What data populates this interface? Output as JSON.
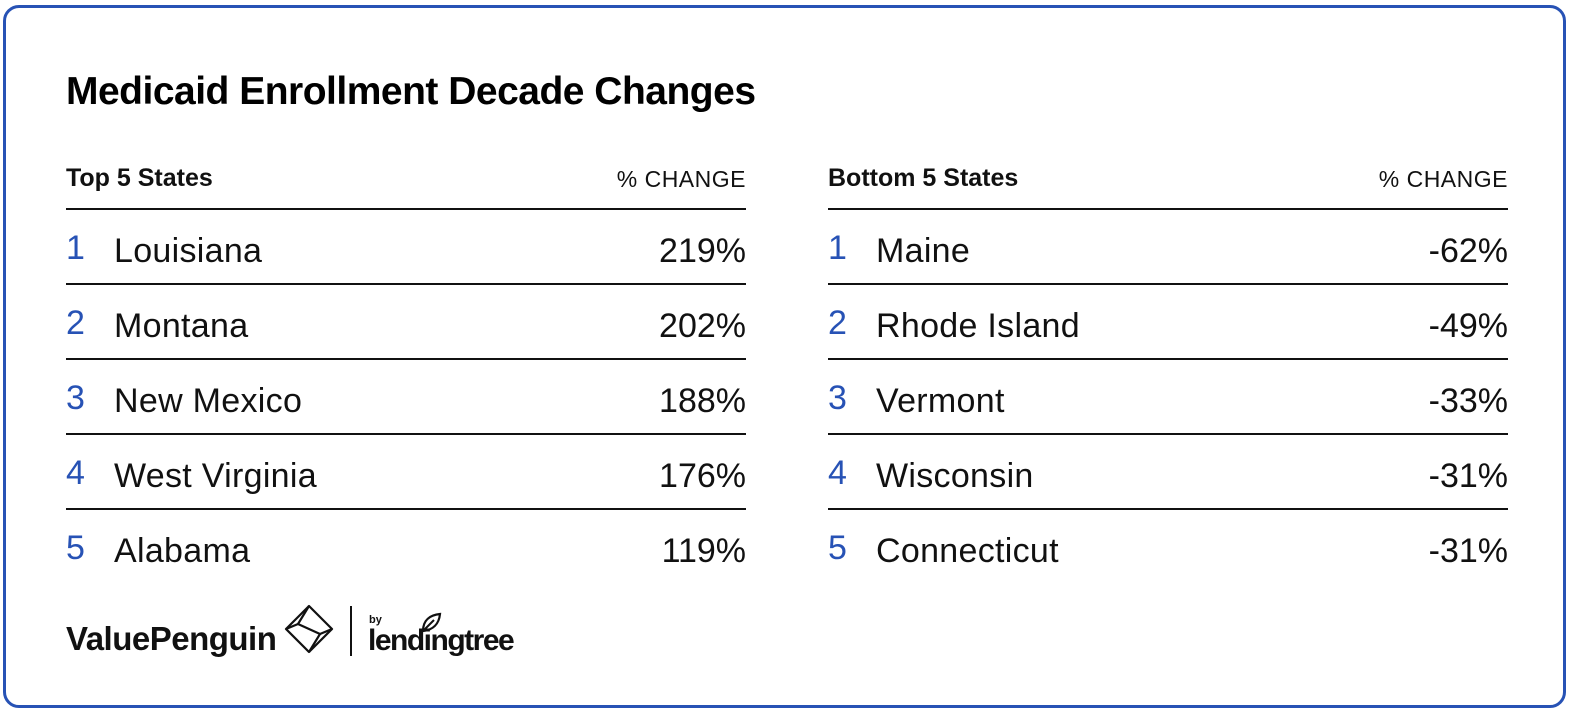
{
  "title": "Medicaid Enrollment Decade Changes",
  "colors": {
    "accent": "#2752b5",
    "text": "#111111",
    "border": "#2752b5"
  },
  "chart_data": [
    {
      "type": "table",
      "title": "Top 5 States",
      "columns": [
        "Top 5 States",
        "% CHANGE"
      ],
      "rows": [
        {
          "rank": "1",
          "state": "Louisiana",
          "value": "219%"
        },
        {
          "rank": "2",
          "state": "Montana",
          "value": "202%"
        },
        {
          "rank": "3",
          "state": "New Mexico",
          "value": "188%"
        },
        {
          "rank": "4",
          "state": "West Virginia",
          "value": "176%"
        },
        {
          "rank": "5",
          "state": "Alabama",
          "value": "119%"
        }
      ]
    },
    {
      "type": "table",
      "title": "Bottom 5 States",
      "columns": [
        "Bottom 5 States",
        "% CHANGE"
      ],
      "rows": [
        {
          "rank": "1",
          "state": "Maine",
          "value": "-62%"
        },
        {
          "rank": "2",
          "state": "Rhode Island",
          "value": "-49%"
        },
        {
          "rank": "3",
          "state": "Vermont",
          "value": "-33%"
        },
        {
          "rank": "4",
          "state": "Wisconsin",
          "value": "-31%"
        },
        {
          "rank": "5",
          "state": "Connecticut",
          "value": "-31%"
        }
      ]
    }
  ],
  "footer": {
    "brand": "ValuePenguin",
    "brand_icon": "valuepenguin-logo-icon",
    "by": "by",
    "partner": "lendingtree",
    "partner_icon": "leaf-icon"
  }
}
